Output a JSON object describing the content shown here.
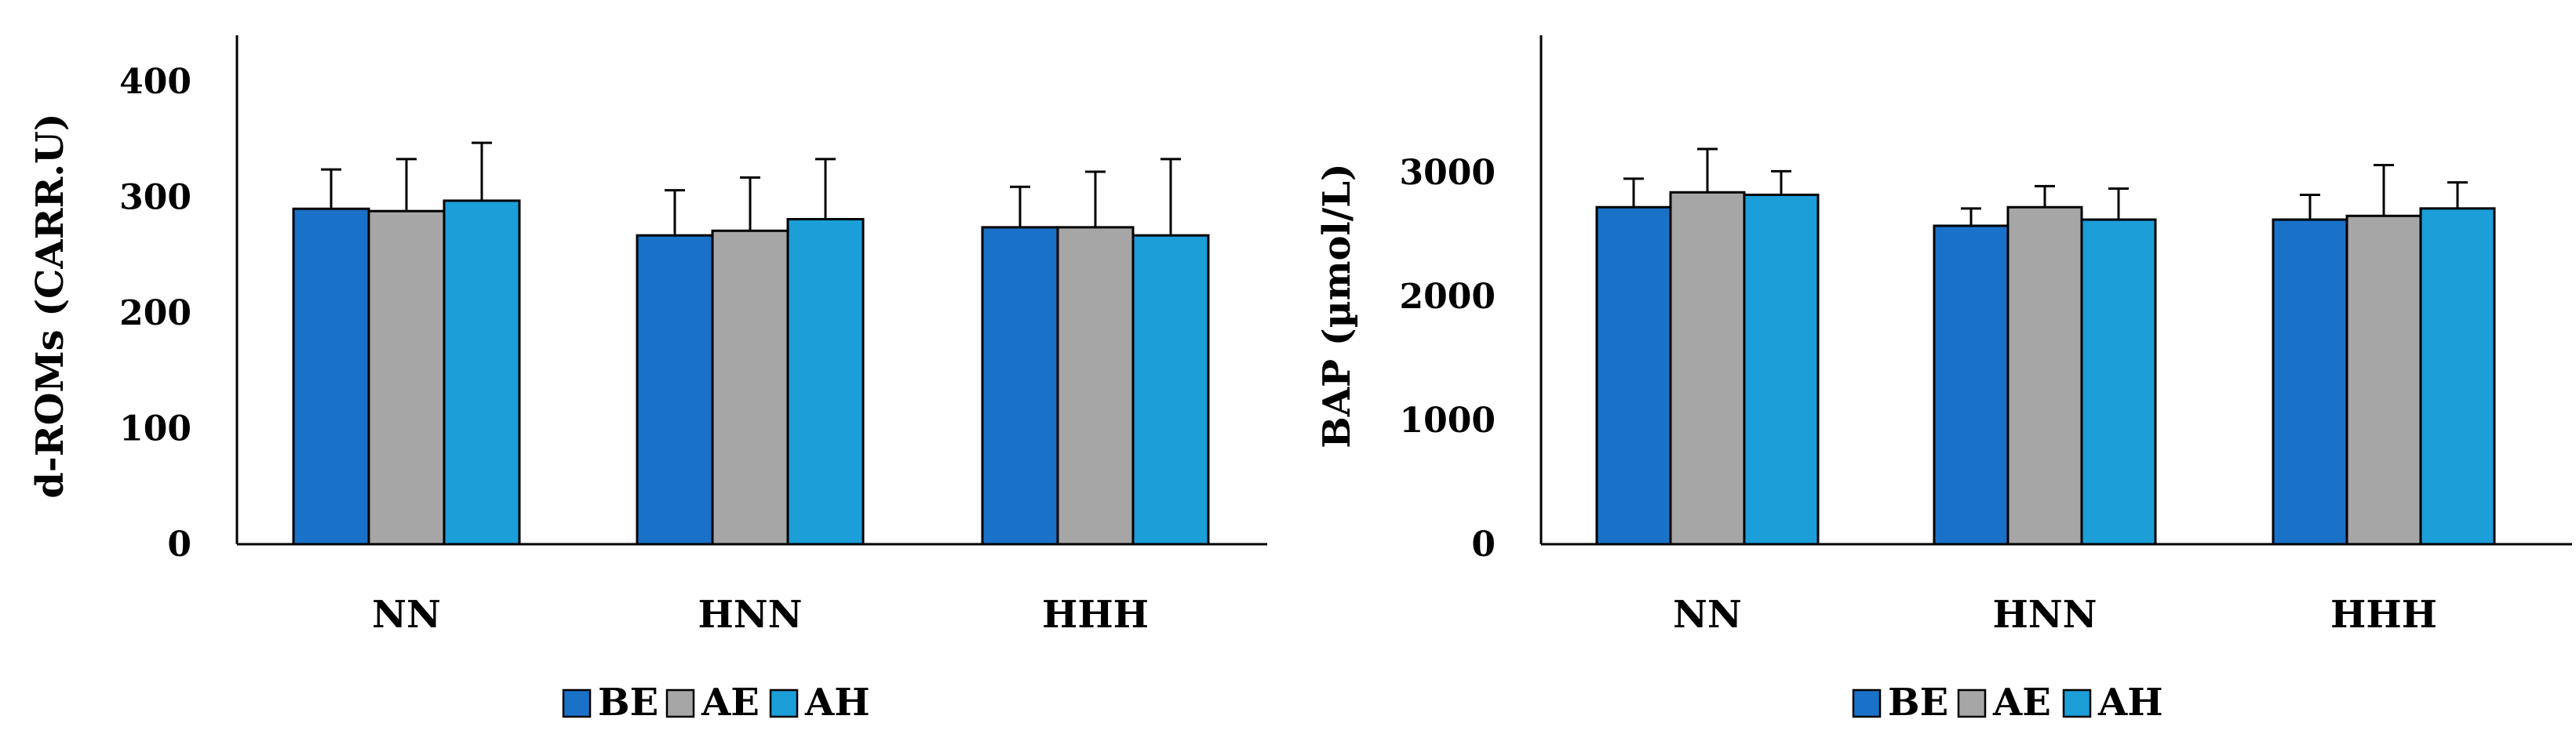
{
  "colors": {
    "BE": "#1a72c8",
    "AE": "#a6a6a6",
    "AH": "#1c9ed9"
  },
  "chart_data": [
    {
      "type": "bar",
      "title": "",
      "xlabel": "",
      "ylabel": "d-ROMs (CARR.U)",
      "ylim": [
        0,
        400
      ],
      "yticks": [
        "0",
        "100",
        "200",
        "300",
        "400"
      ],
      "categories": [
        "NN",
        "HNN",
        "HHH"
      ],
      "series": [
        {
          "name": "BE",
          "values": [
            290,
            267,
            274
          ],
          "errors": [
            34,
            39,
            35
          ]
        },
        {
          "name": "AE",
          "values": [
            288,
            271,
            274
          ],
          "errors": [
            45,
            46,
            48
          ]
        },
        {
          "name": "AH",
          "values": [
            297,
            281,
            267
          ],
          "errors": [
            50,
            52,
            66
          ]
        }
      ],
      "legend": {
        "position": "bottom",
        "entries": [
          "BE",
          "AE",
          "AH"
        ]
      },
      "grid": false
    },
    {
      "type": "bar",
      "title": "",
      "xlabel": "",
      "ylabel": "BAP (µmol/L)",
      "ylim": [
        0,
        3500
      ],
      "yticks": [
        "0",
        "1000",
        "2000",
        "3000"
      ],
      "categories": [
        "NN",
        "HNN",
        "HHH"
      ],
      "series": [
        {
          "name": "BE",
          "values": [
            2720,
            2570,
            2620
          ],
          "errors": [
            230,
            140,
            200
          ]
        },
        {
          "name": "AE",
          "values": [
            2840,
            2720,
            2650
          ],
          "errors": [
            350,
            170,
            410
          ]
        },
        {
          "name": "AH",
          "values": [
            2820,
            2620,
            2710
          ],
          "errors": [
            190,
            250,
            210
          ]
        }
      ],
      "legend": {
        "position": "bottom",
        "entries": [
          "BE",
          "AE",
          "AH"
        ]
      },
      "grid": false
    }
  ]
}
